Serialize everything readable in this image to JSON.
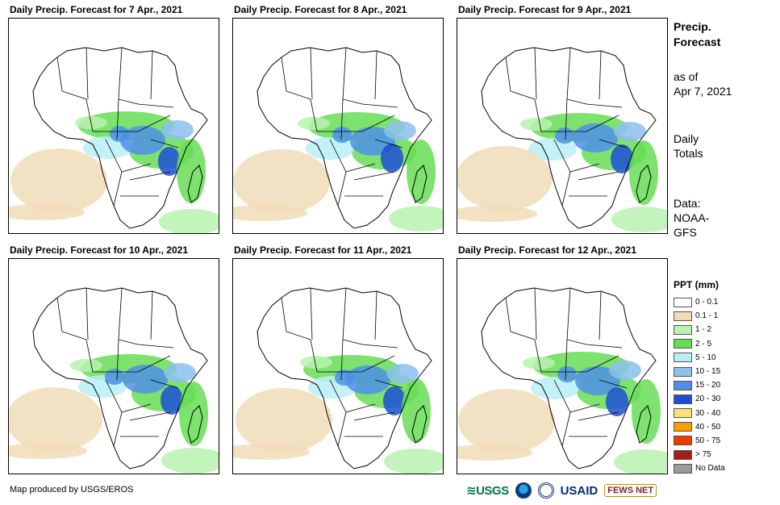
{
  "panels": [
    {
      "title": "Daily Precip. Forecast for 7 Apr., 2021"
    },
    {
      "title": "Daily Precip. Forecast for 8 Apr., 2021"
    },
    {
      "title": "Daily Precip. Forecast for 9 Apr., 2021"
    },
    {
      "title": "Daily Precip. Forecast for 10 Apr., 2021"
    },
    {
      "title": "Daily Precip. Forecast for 11 Apr., 2021"
    },
    {
      "title": "Daily Precip. Forecast for 12 Apr., 2021"
    }
  ],
  "sidebar": {
    "heading_line1": "Precip.",
    "heading_line2": "Forecast",
    "asof_line1": "as of",
    "asof_line2": "Apr 7, 2021",
    "totals_line1": "Daily",
    "totals_line2": "Totals",
    "data_line1": "Data:",
    "data_line2": "NOAA-",
    "data_line3": "GFS"
  },
  "legend": {
    "title": "PPT (mm)",
    "items": [
      {
        "label": "0 - 0.1",
        "color": "#ffffff"
      },
      {
        "label": "0.1 - 1",
        "color": "#f1dcb9"
      },
      {
        "label": "1 - 2",
        "color": "#b9f2b0"
      },
      {
        "label": "2 - 5",
        "color": "#66dd55"
      },
      {
        "label": "5 - 10",
        "color": "#b9eef6"
      },
      {
        "label": "10 - 15",
        "color": "#8cc0ef"
      },
      {
        "label": "15 - 20",
        "color": "#4d90e6"
      },
      {
        "label": "20 - 30",
        "color": "#1c4fd6"
      },
      {
        "label": "30 - 40",
        "color": "#fbe27a"
      },
      {
        "label": "40 - 50",
        "color": "#f5a000"
      },
      {
        "label": "50 - 75",
        "color": "#ee3a00"
      },
      {
        "label": "> 75",
        "color": "#a31d1d"
      },
      {
        "label": "No Data",
        "color": "#9a9a9a"
      }
    ]
  },
  "footer": {
    "credit": "Map produced by USGS/EROS",
    "logo_usgs": "≋USGS",
    "logo_usaid": "USAID",
    "logo_fews": "FEWS NET"
  }
}
